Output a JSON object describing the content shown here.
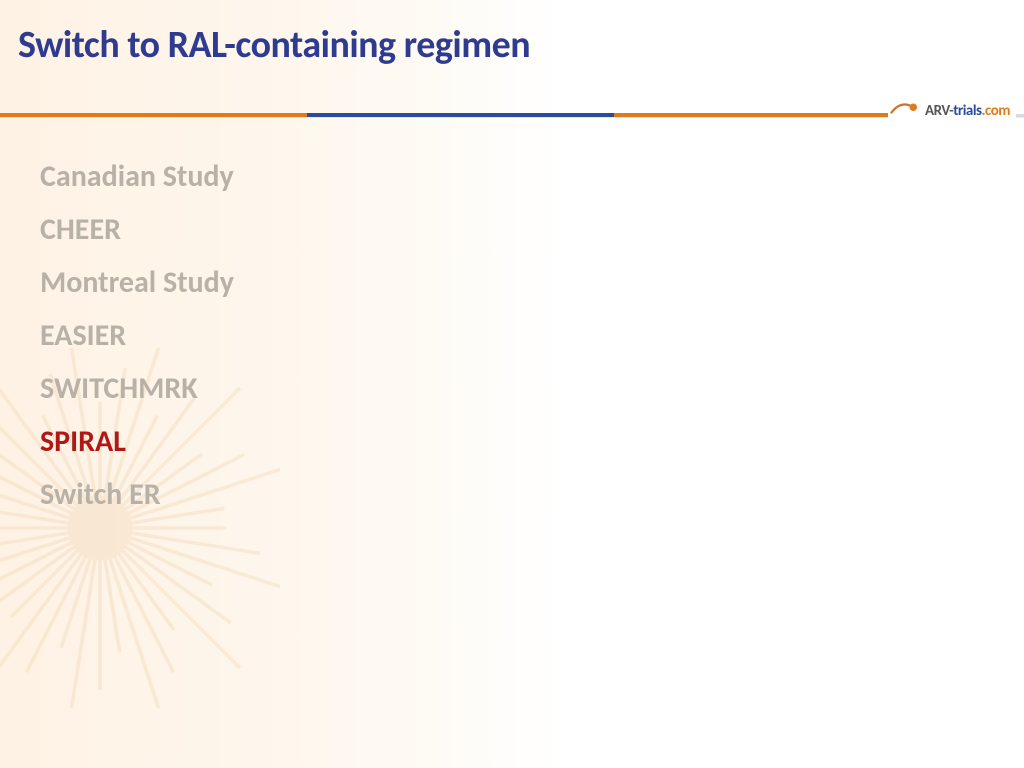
{
  "title": "Switch to RAL-containing regimen",
  "title_color": "#2f3b8f",
  "title_fontsize": 38,
  "background_gradient": [
    "#fef2e4",
    "#ffffff"
  ],
  "divider": {
    "segments": [
      {
        "color": "#e07a1b",
        "left_pct": 0,
        "width_pct": 30
      },
      {
        "color": "#2a4c9b",
        "left_pct": 30,
        "width_pct": 30
      },
      {
        "color": "#e07a1b",
        "left_pct": 60,
        "width_pct": 30
      }
    ],
    "background_color": "#d9d9d9"
  },
  "logo": {
    "part1": "ARV-",
    "part2": "trials",
    "part3": ".com",
    "part1_color": "#555555",
    "part2_color": "#2a4c9b",
    "part3_color": "#e07a1b",
    "dot_color": "#e07a1b",
    "swoosh_color": "#c9742a"
  },
  "list": {
    "item_fontsize": 30,
    "bullet_glyph": "",
    "inactive_color": "#b8b1a8",
    "active_color": "#b01818",
    "items": [
      {
        "label": "Canadian Study",
        "active": false
      },
      {
        "label": "CHEER",
        "active": false
      },
      {
        "label": "Montreal Study",
        "active": false
      },
      {
        "label": "EASIER",
        "active": false
      },
      {
        "label": "SWITCHMRK",
        "active": false
      },
      {
        "label": "SPIRAL",
        "active": true
      },
      {
        "label": "Switch ER",
        "active": false
      }
    ]
  },
  "ornament_color": "#e9c79a"
}
